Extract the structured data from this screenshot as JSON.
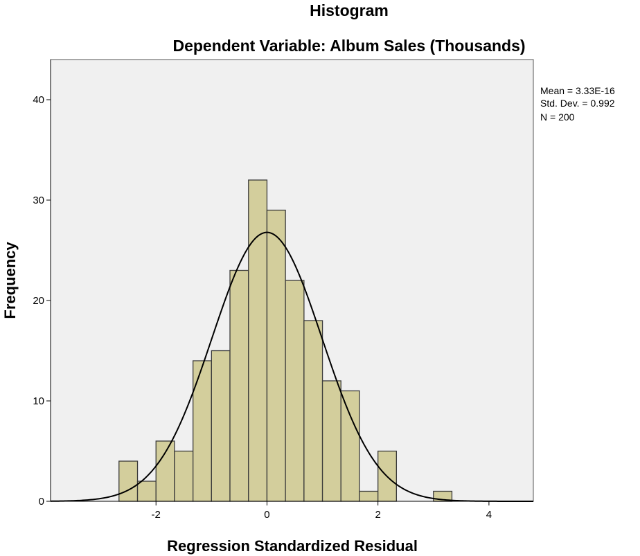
{
  "chart_data": {
    "type": "bar",
    "title": "Histogram",
    "subtitle": "Dependent Variable: Album Sales (Thousands)",
    "xlabel": "Regression Standardized Residual",
    "ylabel": "Frequency",
    "xlim": [
      -3.9,
      4.8
    ],
    "ylim": [
      0,
      44
    ],
    "xticks": [
      -2,
      0,
      2,
      4
    ],
    "xtick_labels": [
      "-2",
      "0",
      "2",
      "4"
    ],
    "yticks": [
      0,
      10,
      20,
      30,
      40
    ],
    "ytick_labels": [
      "0",
      "10",
      "20",
      "30",
      "40"
    ],
    "grid": false,
    "bin_width": 0.333,
    "bins": [
      {
        "x0": -2.667,
        "x1": -2.333,
        "count": 4
      },
      {
        "x0": -2.333,
        "x1": -2.0,
        "count": 2
      },
      {
        "x0": -2.0,
        "x1": -1.667,
        "count": 6
      },
      {
        "x0": -1.667,
        "x1": -1.333,
        "count": 5
      },
      {
        "x0": -1.333,
        "x1": -1.0,
        "count": 14
      },
      {
        "x0": -1.0,
        "x1": -0.667,
        "count": 15
      },
      {
        "x0": -0.667,
        "x1": -0.333,
        "count": 23
      },
      {
        "x0": -0.333,
        "x1": 0.0,
        "count": 32
      },
      {
        "x0": 0.0,
        "x1": 0.333,
        "count": 29
      },
      {
        "x0": 0.333,
        "x1": 0.667,
        "count": 22
      },
      {
        "x0": 0.667,
        "x1": 1.0,
        "count": 18
      },
      {
        "x0": 1.0,
        "x1": 1.333,
        "count": 12
      },
      {
        "x0": 1.333,
        "x1": 1.667,
        "count": 11
      },
      {
        "x0": 1.667,
        "x1": 2.0,
        "count": 1
      },
      {
        "x0": 2.0,
        "x1": 2.333,
        "count": 5
      },
      {
        "x0": 3.0,
        "x1": 3.333,
        "count": 1
      }
    ],
    "normal_curve": {
      "mean": 0.0,
      "sd": 0.992,
      "n": 200
    },
    "stats": {
      "mean": "Mean = 3.33E-16",
      "std_dev": "Std. Dev. = 0.992",
      "n": "N = 200"
    },
    "colors": {
      "plot_background": "#f0f0f0",
      "bar_fill": "#d3ce9c",
      "bar_stroke": "#3a3a3a",
      "curve": "#000000"
    }
  }
}
